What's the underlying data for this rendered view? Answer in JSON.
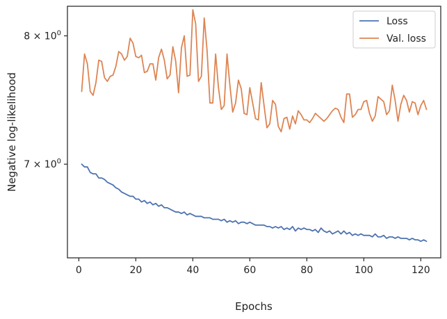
{
  "chart_data": {
    "type": "line",
    "title": "",
    "xlabel": "Epochs",
    "ylabel": "Negative log-likelihood",
    "yscale": "log",
    "xlim": [
      -4,
      127
    ],
    "ylim": [
      6.35,
      8.25
    ],
    "grid": false,
    "legend": {
      "placement": "top-right"
    },
    "x_ticks": [
      {
        "value": 0,
        "label": "0"
      },
      {
        "value": 20,
        "label": "20"
      },
      {
        "value": 40,
        "label": "40"
      },
      {
        "value": 60,
        "label": "60"
      },
      {
        "value": 80,
        "label": "80"
      },
      {
        "value": 100,
        "label": "100"
      },
      {
        "value": 120,
        "label": "120"
      }
    ],
    "y_ticks": [
      {
        "value": 7,
        "base": "7 × 10",
        "exp": "0"
      },
      {
        "value": 8,
        "base": "8 × 10",
        "exp": "0"
      }
    ],
    "x_start": 1,
    "series": [
      {
        "name": "Loss",
        "color": "#4c72b0",
        "values": [
          7.0,
          6.98,
          6.98,
          6.94,
          6.93,
          6.93,
          6.9,
          6.9,
          6.89,
          6.87,
          6.86,
          6.85,
          6.83,
          6.82,
          6.8,
          6.79,
          6.78,
          6.77,
          6.77,
          6.75,
          6.75,
          6.73,
          6.74,
          6.72,
          6.73,
          6.71,
          6.72,
          6.7,
          6.71,
          6.69,
          6.69,
          6.68,
          6.67,
          6.66,
          6.66,
          6.65,
          6.66,
          6.64,
          6.65,
          6.64,
          6.63,
          6.63,
          6.63,
          6.62,
          6.62,
          6.62,
          6.61,
          6.61,
          6.61,
          6.6,
          6.61,
          6.59,
          6.6,
          6.59,
          6.6,
          6.58,
          6.59,
          6.59,
          6.58,
          6.59,
          6.58,
          6.57,
          6.57,
          6.57,
          6.57,
          6.56,
          6.56,
          6.55,
          6.56,
          6.55,
          6.56,
          6.54,
          6.55,
          6.54,
          6.56,
          6.53,
          6.55,
          6.54,
          6.55,
          6.54,
          6.54,
          6.53,
          6.54,
          6.52,
          6.55,
          6.53,
          6.52,
          6.53,
          6.51,
          6.52,
          6.53,
          6.51,
          6.53,
          6.51,
          6.52,
          6.5,
          6.51,
          6.5,
          6.51,
          6.5,
          6.5,
          6.5,
          6.49,
          6.51,
          6.49,
          6.49,
          6.5,
          6.48,
          6.49,
          6.49,
          6.48,
          6.49,
          6.48,
          6.48,
          6.48,
          6.47,
          6.48,
          6.47,
          6.47,
          6.46,
          6.47,
          6.46
        ]
      },
      {
        "name": "Val. loss",
        "color": "#dd8452",
        "values": [
          7.55,
          7.85,
          7.77,
          7.55,
          7.52,
          7.62,
          7.8,
          7.79,
          7.66,
          7.63,
          7.67,
          7.68,
          7.75,
          7.87,
          7.85,
          7.8,
          7.83,
          7.98,
          7.94,
          7.83,
          7.82,
          7.84,
          7.7,
          7.71,
          7.77,
          7.77,
          7.64,
          7.82,
          7.89,
          7.8,
          7.65,
          7.68,
          7.91,
          7.79,
          7.54,
          7.9,
          8.0,
          7.67,
          7.68,
          8.22,
          8.1,
          7.63,
          7.67,
          8.15,
          7.88,
          7.46,
          7.46,
          7.85,
          7.58,
          7.41,
          7.44,
          7.85,
          7.6,
          7.39,
          7.46,
          7.64,
          7.57,
          7.38,
          7.37,
          7.58,
          7.46,
          7.34,
          7.33,
          7.62,
          7.44,
          7.27,
          7.3,
          7.48,
          7.45,
          7.28,
          7.24,
          7.34,
          7.35,
          7.26,
          7.36,
          7.3,
          7.4,
          7.37,
          7.33,
          7.33,
          7.31,
          7.34,
          7.38,
          7.36,
          7.34,
          7.32,
          7.34,
          7.37,
          7.4,
          7.42,
          7.41,
          7.35,
          7.31,
          7.53,
          7.53,
          7.35,
          7.37,
          7.41,
          7.41,
          7.47,
          7.48,
          7.38,
          7.32,
          7.36,
          7.51,
          7.49,
          7.47,
          7.37,
          7.4,
          7.6,
          7.48,
          7.32,
          7.45,
          7.52,
          7.48,
          7.39,
          7.47,
          7.46,
          7.37,
          7.44,
          7.48,
          7.41
        ]
      }
    ]
  }
}
